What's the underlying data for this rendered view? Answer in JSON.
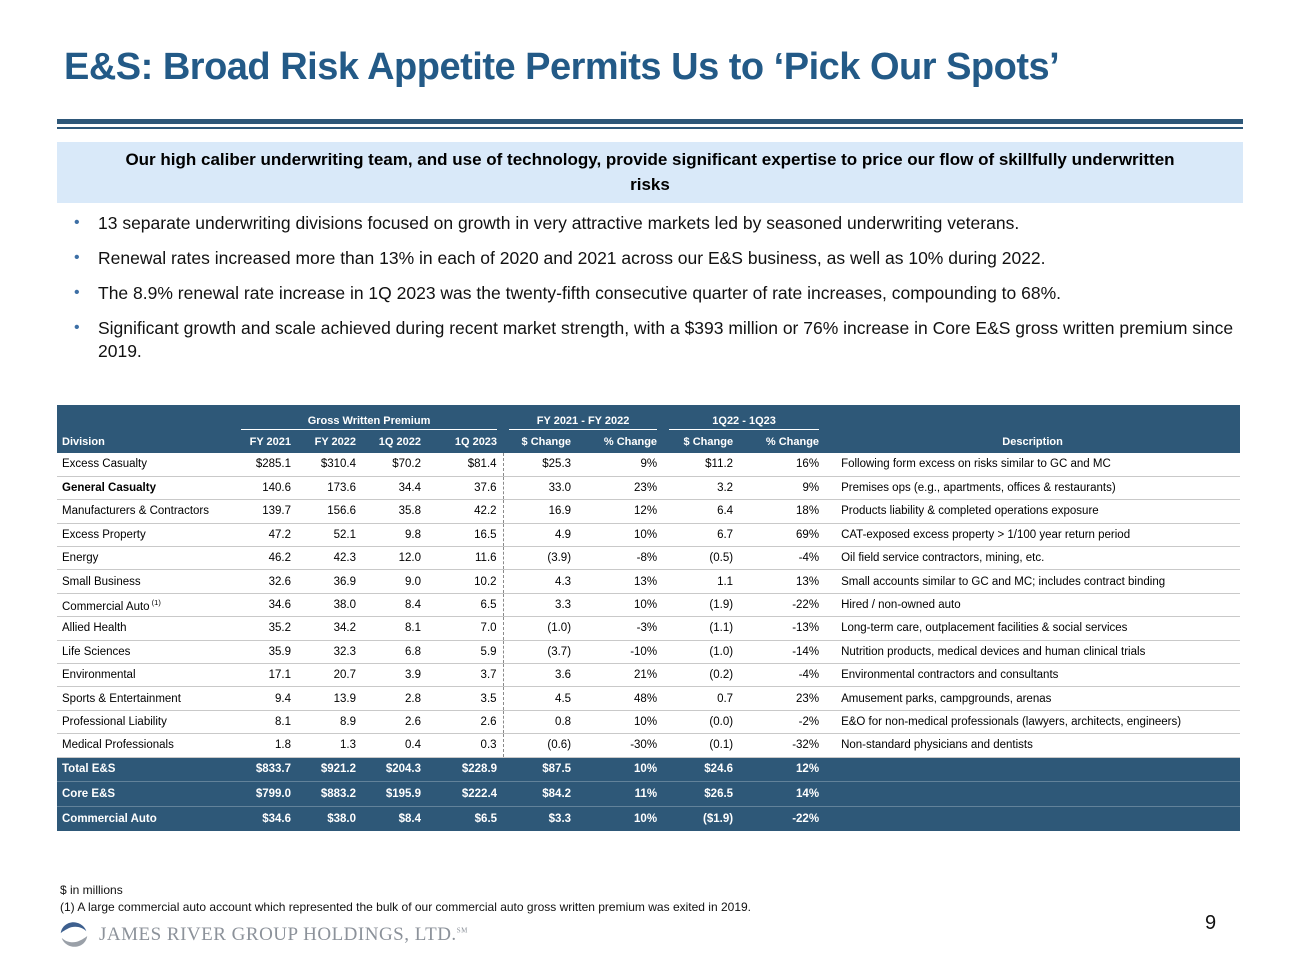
{
  "slide": {
    "title": "E&S: Broad Risk Appetite Permits Us to ‘Pick Our Spots’",
    "highlight_box": "Our high caliber underwriting team, and use of technology, provide significant expertise to price our flow of skillfully underwritten risks",
    "bullets": [
      "13 separate underwriting divisions focused on growth in very attractive markets led by seasoned underwriting veterans.",
      "Renewal rates increased more than 13% in each of 2020 and 2021 across our E&S business, as well as 10% during 2022.",
      "The 8.9% renewal rate increase in 1Q 2023 was the twenty-fifth consecutive quarter of rate increases, compounding to 68%.",
      "Significant growth and scale achieved during recent market strength, with a $393 million or 76% increase in Core E&S gross written premium since 2019."
    ],
    "page_number": "9"
  },
  "table": {
    "group_headers": {
      "gwp": "Gross Written Premium",
      "fy_change": "FY 2021 - FY 2022",
      "q_change": "1Q22 - 1Q23"
    },
    "columns": [
      "Division",
      "FY 2021",
      "FY 2022",
      "1Q 2022",
      "1Q 2023",
      "$ Change",
      "% Change",
      "$ Change",
      "% Change",
      "Description"
    ],
    "rows": [
      {
        "division": "Excess Casualty",
        "sup": "",
        "bold": false,
        "values": [
          "$285.1",
          "$310.4",
          "$70.2",
          "$81.4",
          "$25.3",
          "9%",
          "$11.2",
          "16%"
        ],
        "description": "Following form excess on risks similar to GC and MC"
      },
      {
        "division": "General Casualty",
        "sup": "",
        "bold": true,
        "values": [
          "140.6",
          "173.6",
          "34.4",
          "37.6",
          "33.0",
          "23%",
          "3.2",
          "9%"
        ],
        "description": "Premises ops (e.g., apartments, offices & restaurants)"
      },
      {
        "division": "Manufacturers & Contractors",
        "sup": "",
        "bold": false,
        "values": [
          "139.7",
          "156.6",
          "35.8",
          "42.2",
          "16.9",
          "12%",
          "6.4",
          "18%"
        ],
        "description": "Products liability & completed operations exposure"
      },
      {
        "division": "Excess Property",
        "sup": "",
        "bold": false,
        "values": [
          "47.2",
          "52.1",
          "9.8",
          "16.5",
          "4.9",
          "10%",
          "6.7",
          "69%"
        ],
        "description": "CAT-exposed excess property > 1/100 year return period"
      },
      {
        "division": "Energy",
        "sup": "",
        "bold": false,
        "values": [
          "46.2",
          "42.3",
          "12.0",
          "11.6",
          "(3.9)",
          "-8%",
          "(0.5)",
          "-4%"
        ],
        "description": "Oil field service contractors, mining, etc."
      },
      {
        "division": "Small Business",
        "sup": "",
        "bold": false,
        "values": [
          "32.6",
          "36.9",
          "9.0",
          "10.2",
          "4.3",
          "13%",
          "1.1",
          "13%"
        ],
        "description": "Small accounts similar to GC and MC; includes contract binding"
      },
      {
        "division": "Commercial Auto",
        "sup": "(1)",
        "bold": false,
        "values": [
          "34.6",
          "38.0",
          "8.4",
          "6.5",
          "3.3",
          "10%",
          "(1.9)",
          "-22%"
        ],
        "description": "Hired / non-owned auto"
      },
      {
        "division": "Allied Health",
        "sup": "",
        "bold": false,
        "values": [
          "35.2",
          "34.2",
          "8.1",
          "7.0",
          "(1.0)",
          "-3%",
          "(1.1)",
          "-13%"
        ],
        "description": "Long-term care, outplacement facilities & social services"
      },
      {
        "division": "Life Sciences",
        "sup": "",
        "bold": false,
        "values": [
          "35.9",
          "32.3",
          "6.8",
          "5.9",
          "(3.7)",
          "-10%",
          "(1.0)",
          "-14%"
        ],
        "description": "Nutrition products, medical devices and human clinical trials"
      },
      {
        "division": "Environmental",
        "sup": "",
        "bold": false,
        "values": [
          "17.1",
          "20.7",
          "3.9",
          "3.7",
          "3.6",
          "21%",
          "(0.2)",
          "-4%"
        ],
        "description": "Environmental contractors and consultants"
      },
      {
        "division": "Sports & Entertainment",
        "sup": "",
        "bold": false,
        "values": [
          "9.4",
          "13.9",
          "2.8",
          "3.5",
          "4.5",
          "48%",
          "0.7",
          "23%"
        ],
        "description": "Amusement parks, campgrounds, arenas"
      },
      {
        "division": "Professional Liability",
        "sup": "",
        "bold": false,
        "values": [
          "8.1",
          "8.9",
          "2.6",
          "2.6",
          "0.8",
          "10%",
          "(0.0)",
          "-2%"
        ],
        "description": "E&O for non-medical professionals (lawyers, architects, engineers)"
      },
      {
        "division": "Medical Professionals",
        "sup": "",
        "bold": false,
        "values": [
          "1.8",
          "1.3",
          "0.4",
          "0.3",
          "(0.6)",
          "-30%",
          "(0.1)",
          "-32%"
        ],
        "description": "Non-standard physicians and dentists"
      }
    ],
    "total_rows": [
      {
        "label": "Total E&S",
        "values": [
          "$833.7",
          "$921.2",
          "$204.3",
          "$228.9",
          "$87.5",
          "10%",
          "$24.6",
          "12%"
        ]
      },
      {
        "label": "Core E&S",
        "values": [
          "$799.0",
          "$883.2",
          "$195.9",
          "$222.4",
          "$84.2",
          "11%",
          "$26.5",
          "14%"
        ]
      },
      {
        "label": "Commercial Auto",
        "values": [
          "$34.6",
          "$38.0",
          "$8.4",
          "$6.5",
          "$3.3",
          "10%",
          "($1.9)",
          "-22%"
        ]
      }
    ]
  },
  "footer": {
    "units_note": "$ in millions",
    "footnote": "(1)   A large commercial auto account which represented the bulk of our commercial auto gross written premium was exited in 2019.",
    "logo_text": "JAMES RIVER GROUP HOLDINGS, LTD.",
    "logo_mark": "SM"
  },
  "colors": {
    "title_blue": "#235A87",
    "rule_blue": "#2E5779",
    "box_bg": "#D9E9F9",
    "table_header_bg": "#2E5878",
    "total_row_bg": "#2E5878",
    "bullet_blue": "#3D6FA5",
    "row_border": "#C9C9C9",
    "logo_gray": "#8C929A",
    "logo_blue": "#3D5F8E"
  }
}
